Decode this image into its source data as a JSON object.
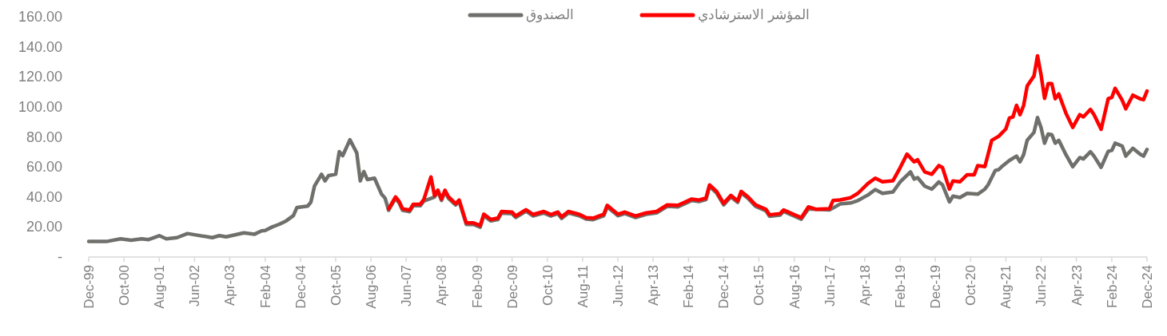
{
  "chart_data": {
    "type": "line",
    "xlim": [
      "1999-12",
      "2024-12"
    ],
    "xticks": [
      {
        "value": "1999-12",
        "label": "Dec-99"
      },
      {
        "value": "2000-10",
        "label": "Oct-00"
      },
      {
        "value": "2001-08",
        "label": "Aug-01"
      },
      {
        "value": "2002-06",
        "label": "Jun-02"
      },
      {
        "value": "2003-04",
        "label": "Apr-03"
      },
      {
        "value": "2004-02",
        "label": "Feb-04"
      },
      {
        "value": "2004-12",
        "label": "Dec-04"
      },
      {
        "value": "2005-10",
        "label": "Oct-05"
      },
      {
        "value": "2006-08",
        "label": "Aug-06"
      },
      {
        "value": "2007-06",
        "label": "Jun-07"
      },
      {
        "value": "2008-04",
        "label": "Apr-08"
      },
      {
        "value": "2009-02",
        "label": "Feb-09"
      },
      {
        "value": "2009-12",
        "label": "Dec-09"
      },
      {
        "value": "2010-10",
        "label": "Oct-10"
      },
      {
        "value": "2011-08",
        "label": "Aug-11"
      },
      {
        "value": "2012-06",
        "label": "Jun-12"
      },
      {
        "value": "2013-04",
        "label": "Apr-13"
      },
      {
        "value": "2014-02",
        "label": "Feb-14"
      },
      {
        "value": "2014-12",
        "label": "Dec-14"
      },
      {
        "value": "2015-10",
        "label": "Oct-15"
      },
      {
        "value": "2016-08",
        "label": "Aug-16"
      },
      {
        "value": "2017-06",
        "label": "Jun-17"
      },
      {
        "value": "2018-04",
        "label": "Apr-18"
      },
      {
        "value": "2019-02",
        "label": "Feb-19"
      },
      {
        "value": "2019-12",
        "label": "Dec-19"
      },
      {
        "value": "2020-10",
        "label": "Oct-20"
      },
      {
        "value": "2021-08",
        "label": "Aug-21"
      },
      {
        "value": "2022-06",
        "label": "Jun-22"
      },
      {
        "value": "2023-04",
        "label": "Apr-23"
      },
      {
        "value": "2024-02",
        "label": "Feb-24"
      },
      {
        "value": "2024-12",
        "label": "Dec-24"
      }
    ],
    "ylim": [
      0,
      160
    ],
    "yticks": [
      {
        "value": 0,
        "label": "-"
      },
      {
        "value": 20,
        "label": "20.00"
      },
      {
        "value": 40,
        "label": "40.00"
      },
      {
        "value": 60,
        "label": "60.00"
      },
      {
        "value": 80,
        "label": "80.00"
      },
      {
        "value": 100,
        "label": "100.00"
      },
      {
        "value": 120,
        "label": "120.00"
      },
      {
        "value": 140,
        "label": "140.00"
      },
      {
        "value": 160,
        "label": "160.00"
      }
    ],
    "grid": false,
    "legend": "top",
    "marker": "none",
    "line_style": "solid",
    "series": [
      {
        "name": "الصندوق",
        "color": "#6f706b",
        "x": [
          "1999-12",
          "2000-05",
          "2000-09",
          "2000-12",
          "2001-03",
          "2001-05",
          "2001-08",
          "2001-10",
          "2002-01",
          "2002-04",
          "2002-11",
          "2003-01",
          "2003-03",
          "2003-08",
          "2003-11",
          "2004-01",
          "2004-02",
          "2004-04",
          "2004-06",
          "2004-08",
          "2004-10",
          "2004-11",
          "2005-02",
          "2005-03",
          "2005-04",
          "2005-06",
          "2005-07",
          "2005-08",
          "2005-10",
          "2005-11",
          "2005-12",
          "2006-02",
          "2006-04",
          "2006-05",
          "2006-06",
          "2006-07",
          "2006-09",
          "2006-11",
          "2006-12",
          "2007-01",
          "2007-03",
          "2007-04",
          "2007-05",
          "2007-07",
          "2007-08",
          "2007-10",
          "2007-11",
          "2008-01",
          "2008-02",
          "2008-03",
          "2008-04",
          "2008-05",
          "2008-06",
          "2008-08",
          "2008-09",
          "2008-11",
          "2009-01",
          "2009-03",
          "2009-04",
          "2009-06",
          "2009-08",
          "2009-09",
          "2009-12",
          "2010-01",
          "2010-04",
          "2010-06",
          "2010-09",
          "2010-11",
          "2011-01",
          "2011-02",
          "2011-04",
          "2011-07",
          "2011-09",
          "2011-11",
          "2012-02",
          "2012-03",
          "2012-06",
          "2012-08",
          "2012-11",
          "2013-02",
          "2013-05",
          "2013-08",
          "2013-11",
          "2014-03",
          "2014-05",
          "2014-07",
          "2014-08",
          "2014-10",
          "2014-12",
          "2015-02",
          "2015-04",
          "2015-05",
          "2015-07",
          "2015-09",
          "2015-12",
          "2016-01",
          "2016-04",
          "2016-05",
          "2016-10",
          "2016-12",
          "2017-06",
          "2017-09",
          "2017-12",
          "2018-02",
          "2018-05",
          "2018-07",
          "2018-09",
          "2018-12",
          "2019-02",
          "2019-05",
          "2019-06",
          "2019-07",
          "2019-09",
          "2019-11",
          "2020-01",
          "2020-02",
          "2020-04",
          "2020-05",
          "2020-07",
          "2020-09",
          "2020-12",
          "2021-02",
          "2021-03",
          "2021-05",
          "2021-06",
          "2021-07",
          "2021-09",
          "2021-11",
          "2021-12",
          "2022-01",
          "2022-02",
          "2022-04",
          "2022-05",
          "2022-06",
          "2022-07",
          "2022-08",
          "2022-09",
          "2022-10",
          "2022-11",
          "2023-01",
          "2023-03",
          "2023-05",
          "2023-06",
          "2023-08",
          "2023-09",
          "2023-11",
          "2024-01",
          "2024-02",
          "2024-03",
          "2024-05",
          "2024-06",
          "2024-08",
          "2024-10",
          "2024-11",
          "2024-12"
        ],
        "values": [
          10.3,
          10.3,
          12.1,
          11.2,
          12.1,
          11.6,
          14.2,
          12.1,
          12.9,
          15.6,
          12.9,
          14.2,
          13.4,
          16.1,
          15.2,
          17.4,
          17.7,
          20,
          21.8,
          24.1,
          27.6,
          33,
          33.9,
          36.5,
          47.2,
          55.1,
          50.7,
          54.2,
          55.1,
          70.2,
          67.5,
          78.1,
          69.3,
          50.7,
          56.9,
          51.6,
          52.5,
          41.8,
          39.2,
          31.1,
          39,
          36.1,
          31.1,
          30.2,
          34.1,
          34.1,
          37.3,
          null,
          39.9,
          43.5,
          37.6,
          43.5,
          39,
          34.6,
          36.9,
          21.7,
          21.7,
          19.9,
          27.5,
          24,
          24.9,
          29.3,
          28.9,
          26.3,
          30.5,
          27.3,
          29.3,
          27.3,
          28.9,
          25.7,
          29.3,
          27.5,
          25.2,
          24.9,
          27.5,
          33.4,
          27.5,
          28.9,
          26.3,
          28.4,
          29.3,
          33.7,
          33.4,
          37.6,
          36.9,
          38.2,
          47,
          42.6,
          34.7,
          40,
          36.4,
          42.7,
          38.9,
          33.8,
          30.7,
          27.1,
          27.9,
          30.3,
          25.2,
          32,
          31.3,
          35.3,
          36,
          37.6,
          41.4,
          44.9,
          42.4,
          43.3,
          50,
          56.7,
          51.9,
          52.9,
          47.2,
          45.2,
          50,
          48.1,
          36.7,
          40.5,
          39.6,
          42.4,
          41.8,
          45.2,
          48.1,
          57.6,
          58.2,
          60.5,
          64.3,
          67.2,
          63.4,
          68.1,
          77.7,
          83,
          92.9,
          86.1,
          75.8,
          81.9,
          81.5,
          75.8,
          77.7,
          68.2,
          60.1,
          66.2,
          65.3,
          70.1,
          67.2,
          59.7,
          70.4,
          71,
          75.8,
          73.9,
          67.2,
          72.4,
          68.6,
          67.2,
          71.6
        ]
      },
      {
        "name": "المؤشر  الاسترشادي",
        "color": "#ff0000",
        "x": [
          "2007-01",
          "2007-03",
          "2007-04",
          "2007-05",
          "2007-07",
          "2007-08",
          "2007-10",
          "2007-11",
          "2008-01",
          "2008-02",
          "2008-03",
          "2008-04",
          "2008-05",
          "2008-06",
          "2008-08",
          "2008-09",
          "2008-11",
          "2009-01",
          "2009-03",
          "2009-04",
          "2009-06",
          "2009-08",
          "2009-09",
          "2009-12",
          "2010-01",
          "2010-04",
          "2010-06",
          "2010-09",
          "2010-11",
          "2011-01",
          "2011-02",
          "2011-04",
          "2011-07",
          "2011-09",
          "2011-11",
          "2012-02",
          "2012-03",
          "2012-06",
          "2012-08",
          "2012-11",
          "2013-02",
          "2013-05",
          "2013-08",
          "2013-11",
          "2014-03",
          "2014-05",
          "2014-07",
          "2014-08",
          "2014-10",
          "2014-12",
          "2015-02",
          "2015-04",
          "2015-05",
          "2015-07",
          "2015-09",
          "2015-12",
          "2016-01",
          "2016-04",
          "2016-05",
          "2016-10",
          "2016-12",
          "2017-02",
          "2017-06",
          "2017-07",
          "2017-09",
          "2017-12",
          "2018-02",
          "2018-05",
          "2018-07",
          "2018-09",
          "2018-12",
          "2019-02",
          "2019-04",
          "2019-06",
          "2019-07",
          "2019-09",
          "2019-11",
          "2020-01",
          "2020-02",
          "2020-04",
          "2020-05",
          "2020-07",
          "2020-09",
          "2020-11",
          "2020-12",
          "2021-02",
          "2021-04",
          "2021-06",
          "2021-08",
          "2021-09",
          "2021-10",
          "2021-11",
          "2021-12",
          "2022-01",
          "2022-02",
          "2022-04",
          "2022-05",
          "2022-06",
          "2022-07",
          "2022-08",
          "2022-09",
          "2022-10",
          "2022-11",
          "2023-01",
          "2023-03",
          "2023-05",
          "2023-06",
          "2023-08",
          "2023-09",
          "2023-11",
          "2024-01",
          "2024-02",
          "2024-03",
          "2024-05",
          "2024-06",
          "2024-08",
          "2024-10",
          "2024-11",
          "2024-12"
        ],
        "values": [
          32.1,
          40,
          37.1,
          32.1,
          31.2,
          35.1,
          35.1,
          38.3,
          53.3,
          40.9,
          44.5,
          38.6,
          44.5,
          40,
          35.6,
          37.9,
          22.7,
          22.7,
          20.9,
          28.5,
          25,
          25.9,
          30.3,
          29.9,
          27.3,
          31.5,
          28.3,
          30.3,
          28.3,
          29.9,
          26.7,
          30.3,
          28.5,
          26.2,
          25.9,
          28.5,
          34.4,
          28.5,
          29.9,
          27.3,
          29.4,
          30.3,
          34.7,
          34.4,
          38.6,
          37.9,
          39.2,
          48,
          43.6,
          35.7,
          41,
          37.4,
          43.7,
          39.9,
          34.8,
          31.7,
          28.1,
          28.9,
          31.3,
          26.2,
          33.4,
          31.8,
          32.1,
          37.6,
          38,
          39.5,
          42.4,
          49.1,
          52.5,
          50.1,
          50.8,
          59.5,
          68.5,
          63.4,
          64.8,
          56.7,
          55.1,
          60.9,
          59.5,
          45.2,
          50.6,
          50.1,
          54.8,
          54.8,
          60.9,
          60.2,
          77.7,
          80.5,
          85.3,
          92.6,
          93.3,
          101,
          94.8,
          100.8,
          113.9,
          120.6,
          134,
          121.2,
          105.7,
          115.5,
          115.5,
          105.4,
          108.6,
          95.8,
          86.3,
          94.8,
          93.3,
          98.3,
          94.8,
          85,
          105.4,
          106.2,
          112.4,
          104.4,
          98.7,
          107.8,
          105.4,
          104.8,
          110.5
        ]
      }
    ]
  }
}
